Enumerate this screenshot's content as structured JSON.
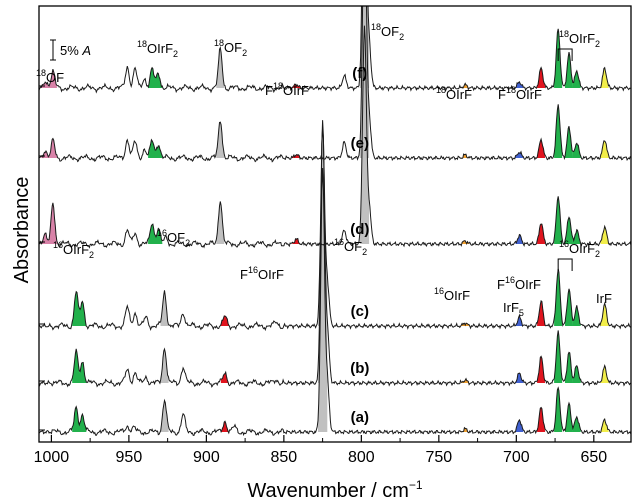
{
  "chart_data": {
    "type": "line",
    "xlabel": "Wavenumber / cm",
    "xlabel_sup": "−1",
    "ylabel": "Absorbance",
    "xlim": [
      1008,
      626
    ],
    "x_ticks": [
      1000,
      950,
      900,
      850,
      800,
      750,
      700,
      650
    ],
    "scale_bar": {
      "label": "5%",
      "label_unit": "A",
      "absorbance_span": 0.05
    },
    "series": [
      {
        "name": "(a)",
        "peaks": [
          {
            "x": 984,
            "h": 0.4,
            "band": "16OIrF2"
          },
          {
            "x": 980,
            "h": 0.28,
            "band": "16OIrF2"
          },
          {
            "x": 951,
            "h": 0.1
          },
          {
            "x": 947,
            "h": 0.07
          },
          {
            "x": 927,
            "h": 0.52,
            "band": "16OF2"
          },
          {
            "x": 915,
            "h": 0.28
          },
          {
            "x": 888,
            "h": 0.18,
            "band": "F16OIrF"
          },
          {
            "x": 882,
            "h": 0.08
          },
          {
            "x": 825,
            "h": 4.2,
            "band": "16OF2"
          },
          {
            "x": 822,
            "h": 0.8
          },
          {
            "x": 733,
            "h": 0.05,
            "band": "16OIrF"
          },
          {
            "x": 698,
            "h": 0.2,
            "band": "IrF5"
          },
          {
            "x": 684,
            "h": 0.4,
            "band": "F16OIrF"
          },
          {
            "x": 673,
            "h": 0.72,
            "band": "16OIrF2"
          },
          {
            "x": 666,
            "h": 0.45,
            "band": "16OIrF2"
          },
          {
            "x": 661,
            "h": 0.25,
            "band": "16OIrF2"
          },
          {
            "x": 643,
            "h": 0.2,
            "band": "IrF"
          }
        ]
      },
      {
        "name": "(b)",
        "peaks": [
          {
            "x": 984,
            "h": 0.5,
            "band": "16OIrF2"
          },
          {
            "x": 980,
            "h": 0.36,
            "band": "16OIrF2"
          },
          {
            "x": 951,
            "h": 0.22
          },
          {
            "x": 946,
            "h": 0.16
          },
          {
            "x": 939,
            "h": 0.1
          },
          {
            "x": 927,
            "h": 0.58,
            "band": "16OF2"
          },
          {
            "x": 915,
            "h": 0.26
          },
          {
            "x": 888,
            "h": 0.16,
            "band": "F16OIrF"
          },
          {
            "x": 855,
            "h": 0.06
          },
          {
            "x": 825,
            "h": 4.2,
            "band": "16OF2"
          },
          {
            "x": 822,
            "h": 0.85
          },
          {
            "x": 733,
            "h": 0.05,
            "band": "16OIrF"
          },
          {
            "x": 698,
            "h": 0.16,
            "band": "IrF5"
          },
          {
            "x": 684,
            "h": 0.42,
            "band": "F16OIrF"
          },
          {
            "x": 673,
            "h": 0.82,
            "band": "16OIrF2"
          },
          {
            "x": 666,
            "h": 0.5,
            "band": "16OIrF2"
          },
          {
            "x": 661,
            "h": 0.28,
            "band": "16OIrF2"
          },
          {
            "x": 643,
            "h": 0.26,
            "band": "IrF"
          }
        ]
      },
      {
        "name": "(c)",
        "peaks": [
          {
            "x": 984,
            "h": 0.55,
            "band": "16OIrF2"
          },
          {
            "x": 980,
            "h": 0.4,
            "band": "16OIrF2"
          },
          {
            "x": 951,
            "h": 0.3
          },
          {
            "x": 946,
            "h": 0.22
          },
          {
            "x": 939,
            "h": 0.14
          },
          {
            "x": 927,
            "h": 0.55,
            "band": "16OF2"
          },
          {
            "x": 915,
            "h": 0.22
          },
          {
            "x": 888,
            "h": 0.15,
            "band": "F16OIrF"
          },
          {
            "x": 855,
            "h": 0.06
          },
          {
            "x": 825,
            "h": 3.2,
            "band": "16OF2"
          },
          {
            "x": 822,
            "h": 0.7
          },
          {
            "x": 733,
            "h": 0.05,
            "band": "16OIrF"
          },
          {
            "x": 698,
            "h": 0.14,
            "band": "IrF5"
          },
          {
            "x": 684,
            "h": 0.4,
            "band": "F16OIrF"
          },
          {
            "x": 673,
            "h": 0.92,
            "band": "16OIrF2"
          },
          {
            "x": 666,
            "h": 0.6,
            "band": "16OIrF2"
          },
          {
            "x": 661,
            "h": 0.3,
            "band": "16OIrF2"
          },
          {
            "x": 643,
            "h": 0.35,
            "band": "IrF"
          }
        ]
      },
      {
        "name": "(d)",
        "peaks": [
          {
            "x": 1004,
            "h": 0.16,
            "band": "18OF"
          },
          {
            "x": 999,
            "h": 0.66,
            "band": "18OF"
          },
          {
            "x": 951,
            "h": 0.22
          },
          {
            "x": 946,
            "h": 0.18
          },
          {
            "x": 935,
            "h": 0.35,
            "band": "18OIrF2"
          },
          {
            "x": 931,
            "h": 0.25,
            "band": "18OIrF2"
          },
          {
            "x": 926,
            "h": 0.1
          },
          {
            "x": 891,
            "h": 0.72,
            "band": "18OF2"
          },
          {
            "x": 842,
            "h": 0.08,
            "band": "F18OIrF"
          },
          {
            "x": 811,
            "h": 0.22
          },
          {
            "x": 798,
            "h": 3.5,
            "band": "18OF2"
          },
          {
            "x": 795,
            "h": 0.6
          },
          {
            "x": 733,
            "h": 0.05,
            "band": "18OIrF"
          },
          {
            "x": 698,
            "h": 0.14,
            "band": "IrF5"
          },
          {
            "x": 684,
            "h": 0.35,
            "band": "F18OIrF"
          },
          {
            "x": 673,
            "h": 0.78,
            "band": "18OIrF2"
          },
          {
            "x": 666,
            "h": 0.45,
            "band": "18OIrF2"
          },
          {
            "x": 661,
            "h": 0.22,
            "band": "18OIrF2"
          },
          {
            "x": 643,
            "h": 0.28,
            "band": "IrF"
          }
        ]
      },
      {
        "name": "(e)",
        "peaks": [
          {
            "x": 1004,
            "h": 0.1,
            "band": "18OF"
          },
          {
            "x": 999,
            "h": 0.28,
            "band": "18OF"
          },
          {
            "x": 951,
            "h": 0.3
          },
          {
            "x": 946,
            "h": 0.26
          },
          {
            "x": 940,
            "h": 0.14
          },
          {
            "x": 935,
            "h": 0.28,
            "band": "18OIrF2"
          },
          {
            "x": 931,
            "h": 0.24,
            "band": "18OIrF2"
          },
          {
            "x": 891,
            "h": 0.62,
            "band": "18OF2"
          },
          {
            "x": 842,
            "h": 0.06,
            "band": "F18OIrF"
          },
          {
            "x": 811,
            "h": 0.25
          },
          {
            "x": 798,
            "h": 4.0,
            "band": "18OF2"
          },
          {
            "x": 795,
            "h": 0.65
          },
          {
            "x": 733,
            "h": 0.05,
            "band": "18OIrF"
          },
          {
            "x": 698,
            "h": 0.1,
            "band": "IrF5"
          },
          {
            "x": 684,
            "h": 0.3,
            "band": "F18OIrF"
          },
          {
            "x": 673,
            "h": 0.86,
            "band": "18OIrF2"
          },
          {
            "x": 666,
            "h": 0.5,
            "band": "18OIrF2"
          },
          {
            "x": 661,
            "h": 0.25,
            "band": "18OIrF2"
          },
          {
            "x": 643,
            "h": 0.3,
            "band": "IrF"
          }
        ]
      },
      {
        "name": "(f)",
        "peaks": [
          {
            "x": 1004,
            "h": 0.1,
            "band": "18OF"
          },
          {
            "x": 999,
            "h": 0.26,
            "band": "18OF"
          },
          {
            "x": 951,
            "h": 0.35
          },
          {
            "x": 946,
            "h": 0.3
          },
          {
            "x": 940,
            "h": 0.16
          },
          {
            "x": 935,
            "h": 0.3,
            "band": "18OIrF2"
          },
          {
            "x": 931,
            "h": 0.25,
            "band": "18OIrF2"
          },
          {
            "x": 891,
            "h": 0.62,
            "band": "18OF2"
          },
          {
            "x": 842,
            "h": 0.06,
            "band": "F18OIrF"
          },
          {
            "x": 811,
            "h": 0.2
          },
          {
            "x": 798,
            "h": 4.5,
            "band": "18OF2"
          },
          {
            "x": 795,
            "h": 0.7
          },
          {
            "x": 733,
            "h": 0.05,
            "band": "18OIrF"
          },
          {
            "x": 698,
            "h": 0.1,
            "band": "IrF5"
          },
          {
            "x": 684,
            "h": 0.32,
            "band": "F18OIrF"
          },
          {
            "x": 673,
            "h": 0.95,
            "band": "18OIrF2"
          },
          {
            "x": 666,
            "h": 0.55,
            "band": "18OIrF2"
          },
          {
            "x": 661,
            "h": 0.28,
            "band": "18OIrF2"
          },
          {
            "x": 643,
            "h": 0.32,
            "band": "IrF"
          }
        ]
      }
    ],
    "band_colors": {
      "16OIrF2": "#22b14c",
      "18OIrF2": "#22b14c",
      "16OF2": "#c0c0c0",
      "18OF2": "#c0c0c0",
      "F16OIrF": "#e0141e",
      "F18OIrF": "#e0141e",
      "16OIrF": "#f0a030",
      "18OIrF": "#f0a030",
      "IrF5": "#4060d0",
      "IrF": "#f2ee4a",
      "18OF": "#d882a8"
    },
    "annotations": [
      {
        "id": "18OF",
        "iso": "18",
        "main": "OF",
        "sub": ""
      },
      {
        "id": "18OIrF2-left",
        "iso": "18",
        "main": "OIrF",
        "sub": "2"
      },
      {
        "id": "18OF2-mid",
        "iso": "18",
        "main": "OF",
        "sub": "2"
      },
      {
        "id": "F18OIrF-mid",
        "pre": "F",
        "iso": "18",
        "main": "OIrF",
        "sub": ""
      },
      {
        "id": "18OF2-top",
        "iso": "18",
        "main": "OF",
        "sub": "2"
      },
      {
        "id": "18OIrF-right",
        "iso": "18",
        "main": "OIrF",
        "sub": ""
      },
      {
        "id": "F18OIrF-right",
        "pre": "F",
        "iso": "18",
        "main": "OIrF",
        "sub": ""
      },
      {
        "id": "18OIrF2-right",
        "iso": "18",
        "main": "OIrF",
        "sub": "2"
      },
      {
        "id": "16OIrF2-left",
        "iso": "16",
        "main": "OIrF",
        "sub": "2"
      },
      {
        "id": "16OF2-mid",
        "iso": "16",
        "main": "OF",
        "sub": "2"
      },
      {
        "id": "F16OIrF-mid",
        "pre": "F",
        "iso": "16",
        "main": "OIrF",
        "sub": ""
      },
      {
        "id": "16OF2-top",
        "iso": "16",
        "main": "OF",
        "sub": "2"
      },
      {
        "id": "16OIrF2-right",
        "iso": "16",
        "main": "OIrF",
        "sub": "2"
      },
      {
        "id": "F16OIrF-right",
        "pre": "F",
        "iso": "16",
        "main": "OIrF",
        "sub": ""
      },
      {
        "id": "16OIrF-right",
        "iso": "16",
        "main": "OIrF",
        "sub": ""
      },
      {
        "id": "IrF5",
        "main": "IrF",
        "sub": "5"
      },
      {
        "id": "IrF",
        "main": "IrF",
        "sub": ""
      }
    ]
  }
}
